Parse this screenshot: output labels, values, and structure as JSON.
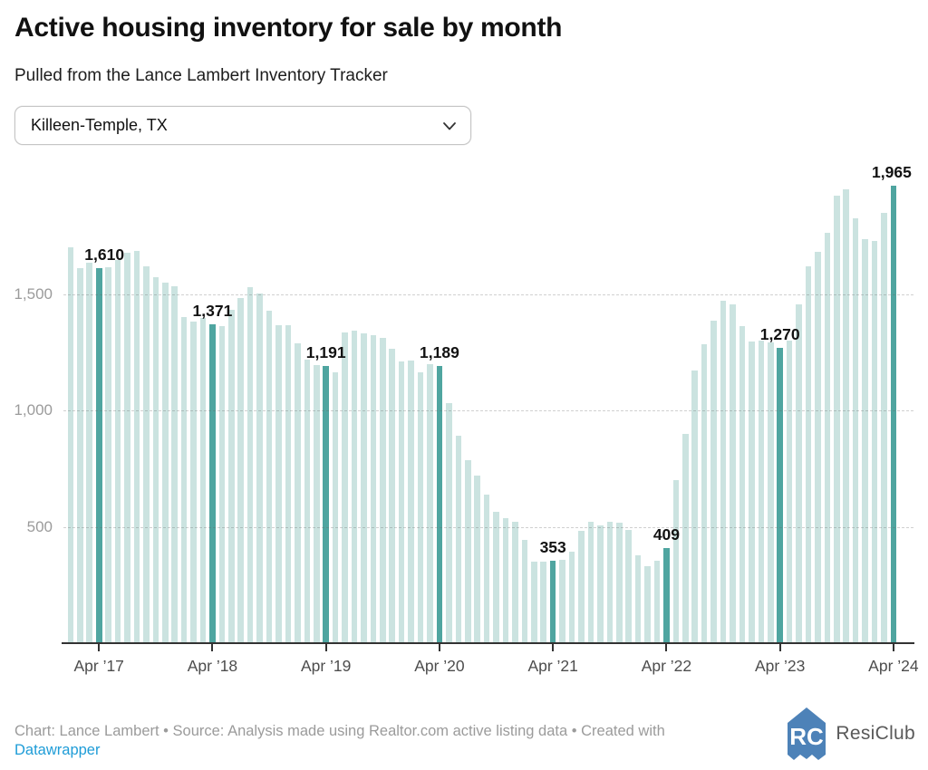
{
  "header": {
    "title": "Active housing inventory for sale by month",
    "subtitle": "Pulled from the Lance Lambert Inventory Tracker"
  },
  "controls": {
    "region_selector": {
      "value": "Killeen-Temple, TX"
    }
  },
  "chart_data": {
    "type": "bar",
    "title": "Active housing inventory for sale by month",
    "x_start": "Jan 2017",
    "x_end": "Apr 2024",
    "months": [
      "Jan 2017",
      "Feb 2017",
      "Mar 2017",
      "Apr 2017",
      "May 2017",
      "Jun 2017",
      "Jul 2017",
      "Aug 2017",
      "Sep 2017",
      "Oct 2017",
      "Nov 2017",
      "Dec 2017",
      "Jan 2018",
      "Feb 2018",
      "Mar 2018",
      "Apr 2018",
      "May 2018",
      "Jun 2018",
      "Jul 2018",
      "Aug 2018",
      "Sep 2018",
      "Oct 2018",
      "Nov 2018",
      "Dec 2018",
      "Jan 2019",
      "Feb 2019",
      "Mar 2019",
      "Apr 2019",
      "May 2019",
      "Jun 2019",
      "Jul 2019",
      "Aug 2019",
      "Sep 2019",
      "Oct 2019",
      "Nov 2019",
      "Dec 2019",
      "Jan 2020",
      "Feb 2020",
      "Mar 2020",
      "Apr 2020",
      "May 2020",
      "Jun 2020",
      "Jul 2020",
      "Aug 2020",
      "Sep 2020",
      "Oct 2020",
      "Nov 2020",
      "Dec 2020",
      "Jan 2021",
      "Feb 2021",
      "Mar 2021",
      "Apr 2021",
      "May 2021",
      "Jun 2021",
      "Jul 2021",
      "Aug 2021",
      "Sep 2021",
      "Oct 2021",
      "Nov 2021",
      "Dec 2021",
      "Jan 2022",
      "Feb 2022",
      "Mar 2022",
      "Apr 2022",
      "May 2022",
      "Jun 2022",
      "Jul 2022",
      "Aug 2022",
      "Sep 2022",
      "Oct 2022",
      "Nov 2022",
      "Dec 2022",
      "Jan 2023",
      "Feb 2023",
      "Mar 2023",
      "Apr 2023",
      "May 2023",
      "Jun 2023",
      "Jul 2023",
      "Aug 2023",
      "Sep 2023",
      "Oct 2023",
      "Nov 2023",
      "Dec 2023",
      "Jan 2024",
      "Feb 2024",
      "Mar 2024",
      "Apr 2024"
    ],
    "values": [
      1700,
      1610,
      1635,
      1610,
      1615,
      1645,
      1676,
      1684,
      1620,
      1571,
      1549,
      1532,
      1400,
      1380,
      1397,
      1371,
      1363,
      1431,
      1481,
      1530,
      1503,
      1429,
      1364,
      1366,
      1288,
      1218,
      1195,
      1191,
      1165,
      1334,
      1342,
      1331,
      1322,
      1312,
      1266,
      1210,
      1213,
      1163,
      1198,
      1189,
      1033,
      890,
      787,
      719,
      637,
      566,
      536,
      523,
      443,
      350,
      350,
      353,
      359,
      394,
      484,
      523,
      504,
      520,
      517,
      488,
      378,
      330,
      355,
      409,
      700,
      900,
      1170,
      1283,
      1387,
      1470,
      1457,
      1361,
      1297,
      1299,
      1290,
      1270,
      1300,
      1454,
      1617,
      1680,
      1762,
      1921,
      1948,
      1823,
      1737,
      1727,
      1850,
      1965
    ],
    "highlighted_months": [
      "Apr 2017",
      "Apr 2018",
      "Apr 2019",
      "Apr 2020",
      "Apr 2021",
      "Apr 2022",
      "Apr 2023",
      "Apr 2024"
    ],
    "annotations": [
      "1,610",
      "1,371",
      "1,191",
      "1,189",
      "353",
      "409",
      "1,270",
      "1,965"
    ],
    "xticks": [
      "Apr ’17",
      "Apr ’18",
      "Apr ’19",
      "Apr ’20",
      "Apr ’21",
      "Apr ’22",
      "Apr ’23",
      "Apr ’24"
    ],
    "yticks": [
      "500",
      "1,000",
      "1,500"
    ],
    "ytick_values": [
      500,
      1000,
      1500
    ],
    "ylim": [
      0,
      2000
    ],
    "grid": "dashed horizontal",
    "legend": "none",
    "colors": {
      "bar_light": "#cbe3e0",
      "bar_highlight": "#4fa5a0",
      "axis": "#333333",
      "grid": "#c9c9c9"
    }
  },
  "footer": {
    "credit_line": "Chart: Lance Lambert • Source: Analysis made using Realtor.com active listing data • Created with",
    "link_label": "Datawrapper",
    "brand_name": "ResiClub"
  }
}
